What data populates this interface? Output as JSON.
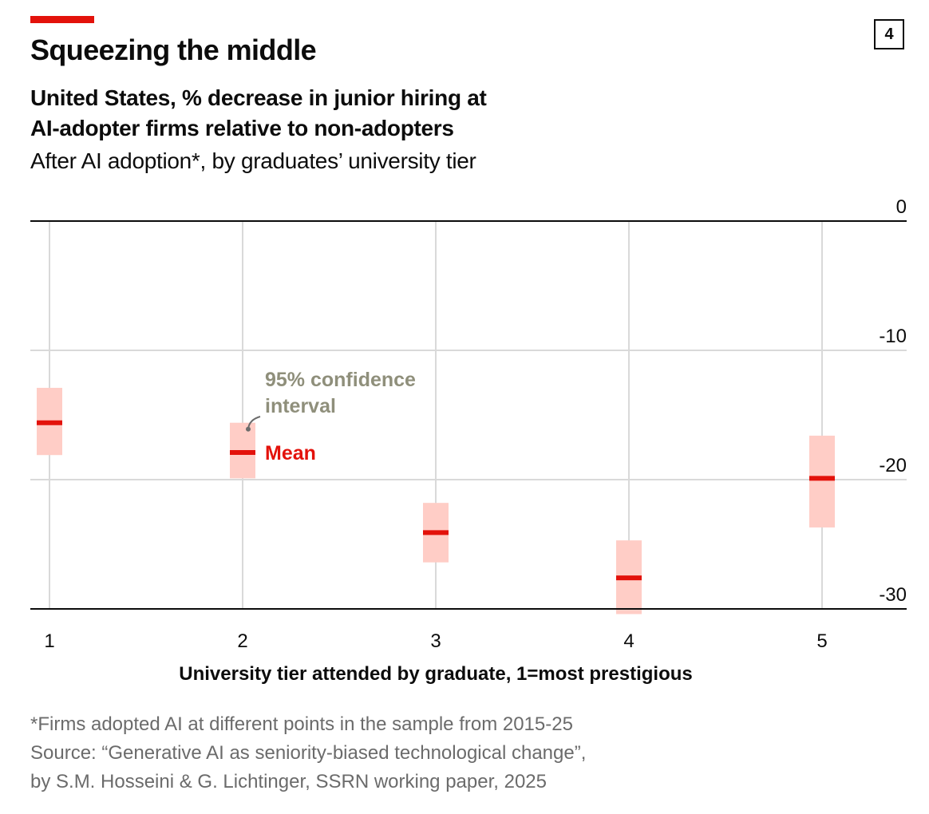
{
  "header": {
    "title": "Squeezing the middle",
    "chart_number": "4",
    "subtitle_line1": "United States, % decrease in junior hiring at",
    "subtitle_line2": "AI-adopter firms relative to non-adopters",
    "subnote": "After AI adoption*, by graduates’ university tier"
  },
  "colors": {
    "accent": "#e3120b",
    "ci_fill": "#ffcdc6",
    "annotation_grey": "#8f8f7b",
    "gridline": "#d9d9d9",
    "footnote_grey": "#6b6b6b"
  },
  "chart_data": {
    "type": "range-dot",
    "x_label": "University tier attended by graduate, 1=most prestigious",
    "categories": [
      "1",
      "2",
      "3",
      "4",
      "5"
    ],
    "series": [
      {
        "name": "Mean",
        "values": [
          -15.6,
          -17.9,
          -24.1,
          -27.6,
          -19.9
        ]
      },
      {
        "name": "95% confidence interval",
        "lower": [
          -18.1,
          -19.9,
          -26.4,
          -30.4,
          -23.7
        ],
        "upper": [
          -12.9,
          -15.6,
          -21.8,
          -24.7,
          -16.6
        ]
      }
    ],
    "y_axis": {
      "ticks": [
        0,
        -10,
        -20,
        -30
      ],
      "tick_labels": [
        "0",
        "-10",
        "-20",
        "-30"
      ],
      "ylim": [
        -30,
        0
      ],
      "position": "right"
    },
    "grid": true,
    "annotations": {
      "ci_label_line1": "95% confidence",
      "ci_label_line2": "interval",
      "mean_label": "Mean"
    }
  },
  "footnotes": {
    "note": "*Firms adopted AI at different points in the sample from 2015-25",
    "source_line1": "Source: “Generative AI as seniority-biased technological change”,",
    "source_line2": "by S.M. Hosseini & G. Lichtinger, SSRN working paper, 2025"
  }
}
